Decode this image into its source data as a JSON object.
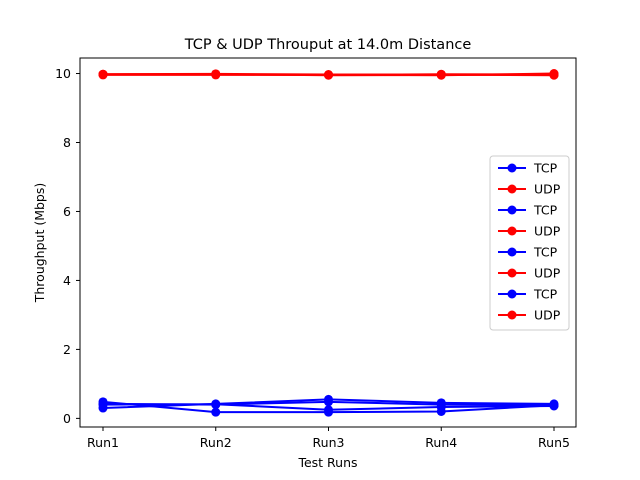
{
  "chart_data": {
    "type": "line",
    "title": "TCP & UDP Throuput at 14.0m Distance",
    "xlabel": "Test Runs",
    "ylabel": "Throughput (Mbps)",
    "categories": [
      "Run1",
      "Run2",
      "Run3",
      "Run4",
      "Run5"
    ],
    "ylim": [
      -0.25,
      10.45
    ],
    "yticks": [
      0,
      2,
      4,
      6,
      8,
      10
    ],
    "grid": false,
    "legend_position": "center-right",
    "series": [
      {
        "name": "TCP",
        "color": "#0000ff",
        "values": [
          0.3,
          0.42,
          0.55,
          0.45,
          0.42
        ]
      },
      {
        "name": "UDP",
        "color": "#ff0000",
        "values": [
          9.98,
          9.99,
          9.97,
          9.97,
          9.95
        ]
      },
      {
        "name": "TCP",
        "color": "#0000ff",
        "values": [
          0.48,
          0.18,
          0.18,
          0.2,
          0.38
        ]
      },
      {
        "name": "UDP",
        "color": "#ff0000",
        "values": [
          9.96,
          9.96,
          9.96,
          9.95,
          10.0
        ]
      },
      {
        "name": "TCP",
        "color": "#0000ff",
        "values": [
          0.42,
          0.4,
          0.48,
          0.4,
          0.38
        ]
      },
      {
        "name": "UDP",
        "color": "#ff0000",
        "values": [
          9.97,
          9.98,
          9.95,
          9.96,
          9.96
        ]
      },
      {
        "name": "TCP",
        "color": "#0000ff",
        "values": [
          0.4,
          0.41,
          0.25,
          0.33,
          0.36
        ]
      },
      {
        "name": "UDP",
        "color": "#ff0000",
        "values": [
          9.98,
          9.97,
          9.96,
          9.98,
          9.97
        ]
      }
    ]
  }
}
